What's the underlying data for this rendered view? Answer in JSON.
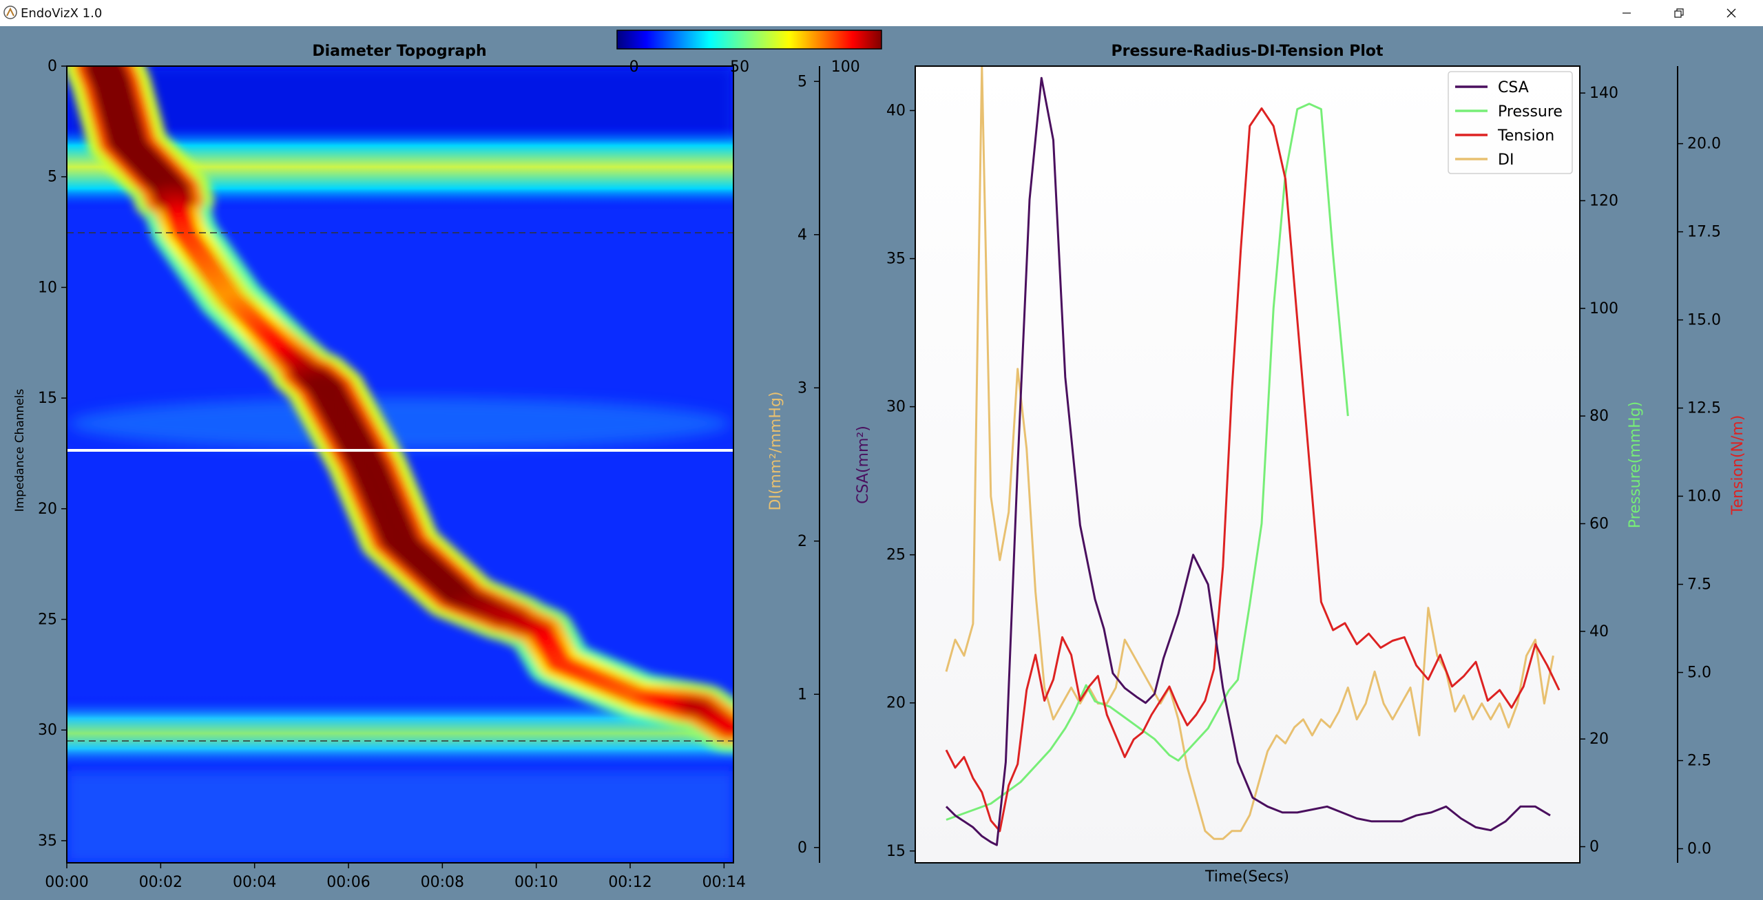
{
  "window": {
    "title": "EndoVizX 1.0",
    "bg_color": "#6a8aa3",
    "buttons": [
      "minimize-icon",
      "restore-icon",
      "close-icon"
    ]
  },
  "colorbar": {
    "ticks": [
      0,
      50,
      100
    ],
    "colormap": "jet"
  },
  "chart_data": [
    {
      "type": "heatmap",
      "title": "Diameter Topograph",
      "xlabel": "",
      "ylabel": "Impedance Channels",
      "x_tick_labels": [
        "00:00",
        "00:02",
        "00:04",
        "00:06",
        "00:08",
        "00:10",
        "00:12",
        "00:14"
      ],
      "y_ticks": [
        0,
        5,
        10,
        15,
        20,
        25,
        30,
        35
      ],
      "ylim": [
        0,
        36
      ],
      "xlim_seconds": [
        0,
        14.2
      ],
      "colorbar_range": [
        0,
        100
      ],
      "dashed_reference_lines_channel": [
        7,
        30
      ],
      "selected_channel_line": 17,
      "secondary_axis": {
        "label": "DI(mm²/mmHg)",
        "ticks": [
          0,
          1,
          2,
          3,
          4,
          5
        ],
        "range": [
          -0.1,
          5.1
        ]
      },
      "features": [
        {
          "name": "bolus",
          "channel": [
            0,
            0.8,
            3.5,
            5.5,
            7.5,
            10.5,
            13,
            14.5,
            18,
            21.5,
            24,
            25.5,
            27,
            28.5,
            29,
            30
          ],
          "time": [
            0.8,
            0.95,
            1.3,
            2.2,
            2.5,
            3.5,
            4.7,
            5.5,
            6.4,
            7.1,
            8.4,
            10.1,
            10.5,
            12.2,
            13.5,
            14.2
          ],
          "intensity": [
            100,
            100,
            100,
            100,
            85,
            75,
            90,
            100,
            100,
            100,
            100,
            92,
            85,
            80,
            95,
            90
          ]
        },
        {
          "name": "upper-band",
          "channel": 4.3,
          "time_range": [
            0,
            14.2
          ],
          "intensity": 58
        },
        {
          "name": "lower-band",
          "channel": 29.5,
          "time_range": [
            0,
            14.2
          ],
          "intensity": 48
        }
      ]
    },
    {
      "type": "line",
      "title": "Pressure-Radius-DI-Tension Plot",
      "xlabel": "Time(Secs)",
      "legend_position": "top-right",
      "axes": [
        {
          "name": "CSA",
          "label": "CSA(mm²)",
          "color": "#4a0f5e",
          "ticks": [
            15,
            20,
            25,
            30,
            35,
            40
          ],
          "range": [
            14.6,
            41.5
          ]
        },
        {
          "name": "Pressure",
          "label": "Pressure(mmHg)",
          "color": "#77ee77",
          "ticks": [
            0,
            20,
            40,
            60,
            80,
            100,
            120,
            140
          ],
          "range": [
            -3,
            145
          ]
        },
        {
          "name": "Tension",
          "label": "Tension(N/m)",
          "color": "#dd2222",
          "ticks": [
            "0.0",
            "2.5",
            "5.0",
            "7.5",
            "10.0",
            "12.5",
            "15.0",
            "17.5",
            "20.0"
          ],
          "range": [
            -0.4,
            22.2
          ]
        },
        {
          "name": "DI",
          "label": "",
          "color": "#e8c070",
          "ticks": [],
          "range": [
            0,
            5
          ]
        }
      ],
      "series": [
        {
          "name": "CSA",
          "color": "#4a0f5e",
          "x": [
            0,
            0.3,
            0.6,
            0.9,
            1.2,
            1.5,
            1.7,
            2.0,
            2.4,
            2.8,
            3.2,
            3.6,
            4.0,
            4.5,
            5.0,
            5.3,
            5.6,
            6.0,
            6.4,
            6.7,
            7.0,
            7.3,
            7.8,
            8.3,
            8.8,
            9.3,
            9.8,
            10.3,
            10.8,
            11.3,
            11.8,
            12.3,
            12.8,
            13.3,
            13.8,
            14.3,
            14.8,
            15.3,
            15.8,
            16.3,
            16.8,
            17.3,
            17.8,
            18.3,
            18.8,
            19.3,
            19.8,
            20.3
          ],
          "y": [
            16.5,
            16.2,
            16.0,
            15.8,
            15.5,
            15.3,
            15.2,
            18.0,
            28.0,
            37.0,
            41.1,
            39.0,
            31.0,
            26.0,
            23.5,
            22.5,
            21.0,
            20.5,
            20.2,
            20.0,
            20.3,
            21.5,
            23.0,
            25.0,
            24.0,
            20.5,
            18.0,
            16.8,
            16.5,
            16.3,
            16.3,
            16.4,
            16.5,
            16.3,
            16.1,
            16.0,
            16.0,
            16.0,
            16.2,
            16.3,
            16.5,
            16.1,
            15.8,
            15.7,
            16.0,
            16.5,
            16.5,
            16.2
          ]
        },
        {
          "name": "Pressure",
          "color": "#77ee77",
          "x": [
            0,
            1.5,
            2.0,
            2.5,
            3.0,
            3.5,
            4.0,
            4.3,
            4.7,
            5.0,
            5.5,
            6.0,
            6.5,
            7.0,
            7.5,
            7.8,
            8.3,
            8.8,
            9.2,
            9.5,
            9.8,
            10.2,
            10.6,
            11.0,
            11.4,
            11.8,
            12.2,
            12.6,
            13.0,
            13.5
          ],
          "y": [
            5,
            8,
            10,
            12,
            15,
            18,
            22,
            25,
            30,
            27,
            26,
            24,
            22,
            20,
            17,
            16,
            19,
            22,
            26,
            29,
            31,
            45,
            60,
            100,
            125,
            137,
            138,
            137,
            110,
            80
          ]
        },
        {
          "name": "Tension",
          "color": "#dd2222",
          "x": [
            0,
            0.3,
            0.6,
            0.9,
            1.2,
            1.5,
            1.8,
            2.1,
            2.4,
            2.7,
            3.0,
            3.3,
            3.6,
            3.9,
            4.2,
            4.5,
            4.8,
            5.1,
            5.4,
            5.7,
            6.0,
            6.3,
            6.6,
            6.9,
            7.2,
            7.5,
            7.8,
            8.1,
            8.4,
            8.7,
            9.0,
            9.3,
            9.6,
            9.9,
            10.2,
            10.6,
            11.0,
            11.4,
            11.8,
            12.2,
            12.6,
            13.0,
            13.4,
            13.8,
            14.2,
            14.6,
            15.0,
            15.4,
            15.8,
            16.2,
            16.6,
            17.0,
            17.4,
            17.8,
            18.2,
            18.6,
            19.0,
            19.4,
            19.8,
            20.2,
            20.6
          ],
          "y": [
            2.8,
            2.3,
            2.6,
            2.0,
            1.6,
            0.8,
            0.5,
            1.8,
            2.4,
            4.5,
            5.5,
            4.2,
            4.8,
            6.0,
            5.5,
            4.2,
            4.6,
            4.9,
            3.8,
            3.2,
            2.6,
            3.1,
            3.3,
            3.8,
            4.2,
            4.6,
            4.0,
            3.5,
            3.8,
            4.2,
            5.1,
            8,
            13,
            17,
            20.5,
            21,
            20.5,
            19,
            15,
            11,
            7.0,
            6.2,
            6.4,
            5.8,
            6.1,
            5.7,
            5.9,
            6.0,
            5.2,
            4.8,
            5.5,
            4.6,
            4.9,
            5.3,
            4.2,
            4.5,
            4.0,
            4.6,
            5.8,
            5.2,
            4.5
          ]
        },
        {
          "name": "DI",
          "color": "#e8c070",
          "x": [
            0,
            0.3,
            0.6,
            0.9,
            1.2,
            1.5,
            1.8,
            2.1,
            2.4,
            2.7,
            3.0,
            3.3,
            3.6,
            3.9,
            4.2,
            4.5,
            4.8,
            5.1,
            5.4,
            5.7,
            6.0,
            6.3,
            6.6,
            6.9,
            7.2,
            7.5,
            7.8,
            8.1,
            8.4,
            8.7,
            9.0,
            9.3,
            9.6,
            9.9,
            10.2,
            10.5,
            10.8,
            11.1,
            11.4,
            11.7,
            12.0,
            12.3,
            12.6,
            12.9,
            13.2,
            13.5,
            13.8,
            14.1,
            14.4,
            14.7,
            15.0,
            15.3,
            15.6,
            15.9,
            16.2,
            16.5,
            16.8,
            17.1,
            17.4,
            17.7,
            18.0,
            18.3,
            18.6,
            18.9,
            19.2,
            19.5,
            19.8,
            20.1,
            20.4
          ],
          "y": [
            1.2,
            1.4,
            1.3,
            1.5,
            5.0,
            2.3,
            1.9,
            2.2,
            3.1,
            2.6,
            1.7,
            1.1,
            0.9,
            1.0,
            1.1,
            1.0,
            1.1,
            1.0,
            1.0,
            1.1,
            1.4,
            1.3,
            1.2,
            1.1,
            1.0,
            1.1,
            0.9,
            0.6,
            0.4,
            0.2,
            0.15,
            0.15,
            0.2,
            0.2,
            0.3,
            0.5,
            0.7,
            0.8,
            0.75,
            0.85,
            0.9,
            0.8,
            0.9,
            0.85,
            0.95,
            1.1,
            0.9,
            1.0,
            1.2,
            1.0,
            0.9,
            1.0,
            1.1,
            0.8,
            1.6,
            1.3,
            1.2,
            0.95,
            1.05,
            0.9,
            1.0,
            0.9,
            1.0,
            0.85,
            1.0,
            1.3,
            1.4,
            1.0,
            1.3
          ]
        }
      ]
    }
  ]
}
